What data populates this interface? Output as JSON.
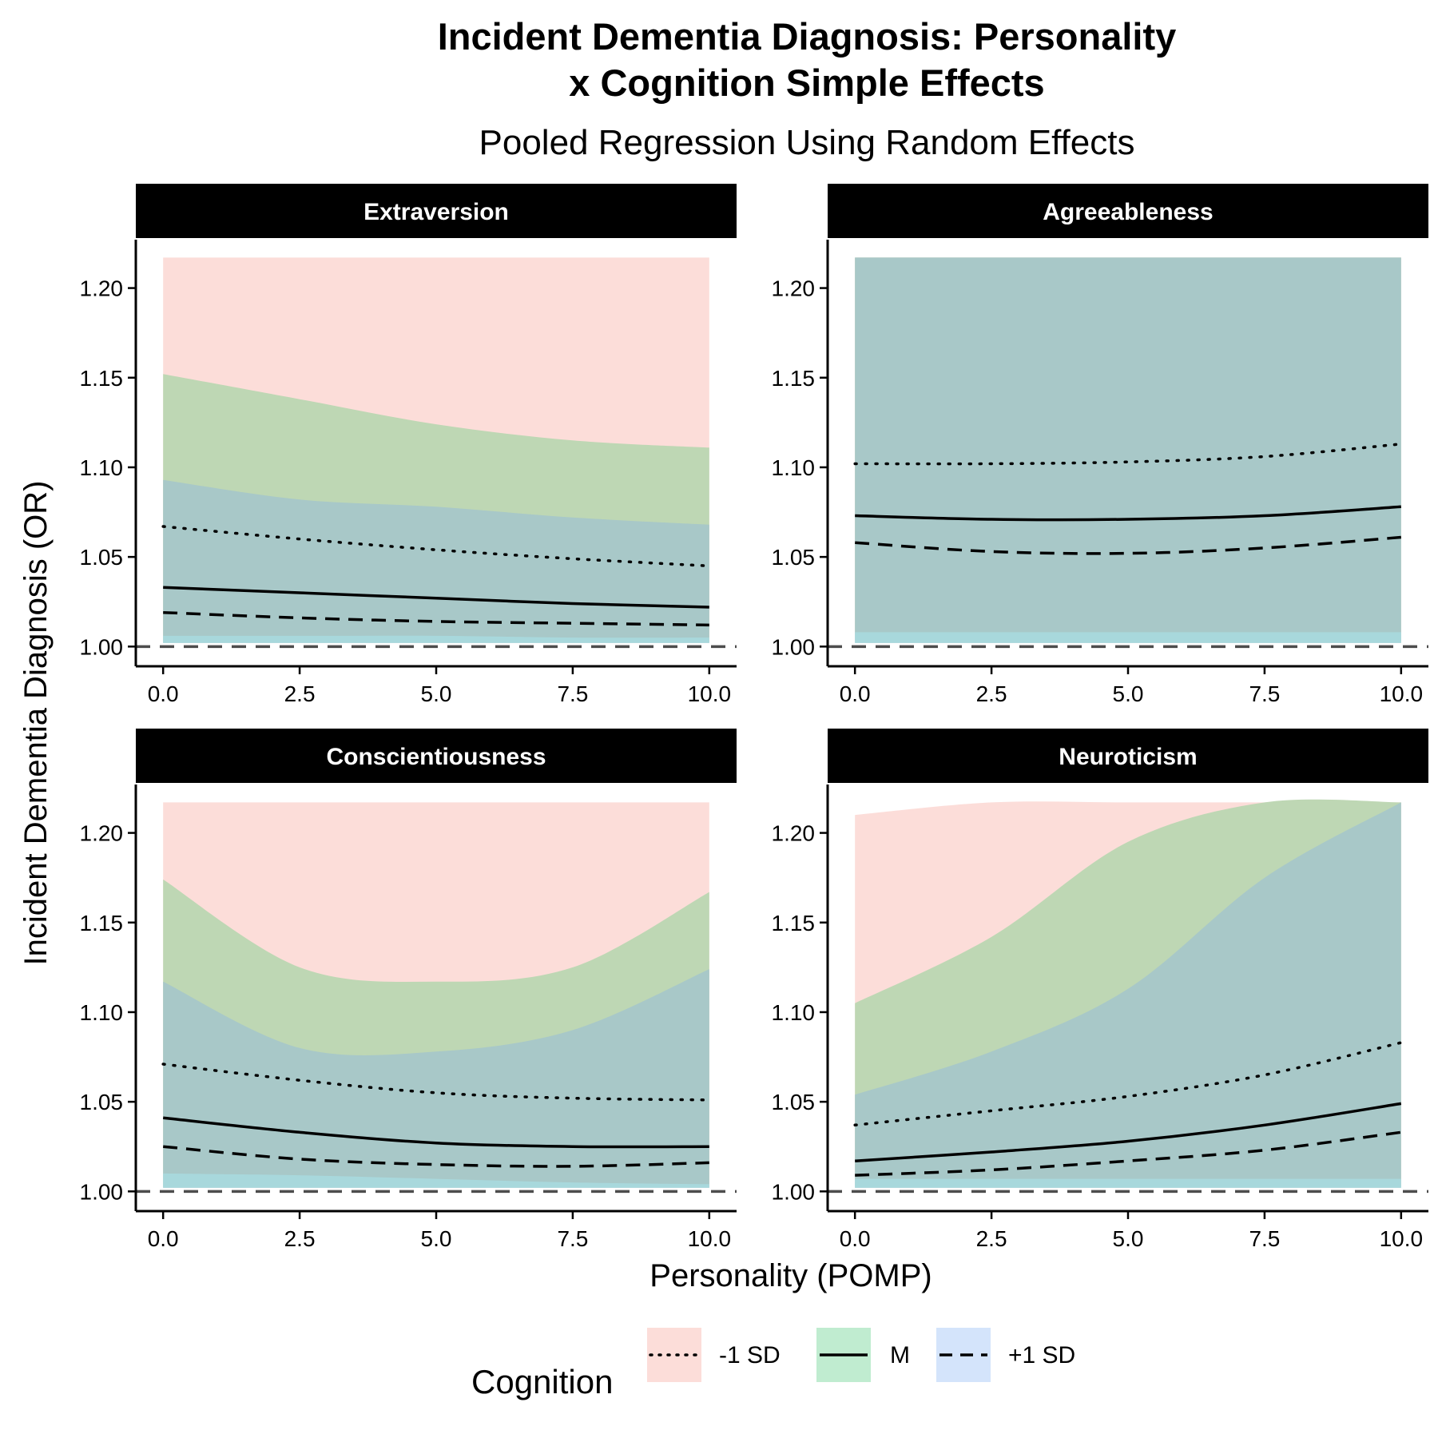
{
  "title_line1": "Incident Dementia Diagnosis: Personality",
  "title_line2": "x Cognition Simple Effects",
  "subtitle": "Pooled Regression Using Random Effects",
  "colors": {
    "band_minus": "#fcddd9",
    "band_mean": "#bed7b4",
    "band_plus": "#a8c8c8",
    "band_base_mean": "#a8d8dc",
    "band_base_plus": "#cfe2f8",
    "legend_minus": "#fcddd9",
    "legend_mean": "#c0ecd0",
    "legend_plus": "#d4e4fb",
    "strip": "#000000",
    "refline": "#4d4d4d"
  },
  "chart_data": {
    "type": "line",
    "xlabel": "Personality (POMP)",
    "ylabel": "Incident Dementia Diagnosis (OR)",
    "xlim": [
      -0.5,
      10.5
    ],
    "ylim": [
      0.989,
      1.227
    ],
    "x_ticks": [
      "0.0",
      "2.5",
      "5.0",
      "7.5",
      "10.0"
    ],
    "y_ticks": [
      "1.00",
      "1.05",
      "1.10",
      "1.15",
      "1.20"
    ],
    "reference_line": 1.0,
    "band_cap": 1.217,
    "x": [
      0,
      2.5,
      5,
      7.5,
      10
    ],
    "legend": {
      "title": "Cognition",
      "entries": [
        "-1 SD",
        "M",
        "+1 SD"
      ]
    },
    "panels": [
      {
        "name": "Extraversion",
        "lines": {
          "minus": [
            1.067,
            1.06,
            1.054,
            1.049,
            1.045
          ],
          "mean": [
            1.033,
            1.03,
            1.027,
            1.024,
            1.022
          ],
          "plus": [
            1.019,
            1.016,
            1.014,
            1.013,
            1.012
          ]
        },
        "bands": {
          "minus": {
            "lower": [
              1.003,
              1.003,
              1.003,
              1.003,
              1.003
            ],
            "upper": [
              1.217,
              1.217,
              1.217,
              1.217,
              1.217
            ]
          },
          "mean": {
            "lower": [
              1.006,
              1.006,
              1.006,
              1.005,
              1.005
            ],
            "upper": [
              1.152,
              1.138,
              1.124,
              1.115,
              1.111
            ]
          },
          "plus": {
            "lower": [
              1.002,
              1.002,
              1.002,
              1.002,
              1.002
            ],
            "upper": [
              1.093,
              1.082,
              1.078,
              1.072,
              1.068
            ]
          }
        }
      },
      {
        "name": "Agreeableness",
        "lines": {
          "minus": [
            1.102,
            1.102,
            1.103,
            1.106,
            1.113
          ],
          "mean": [
            1.073,
            1.071,
            1.071,
            1.073,
            1.078
          ],
          "plus": [
            1.058,
            1.053,
            1.052,
            1.055,
            1.061
          ]
        },
        "bands": {
          "minus": {
            "lower": [
              1.003,
              1.003,
              1.003,
              1.003,
              1.003
            ],
            "upper": [
              1.217,
              1.217,
              1.217,
              1.217,
              1.217
            ]
          },
          "mean": {
            "lower": [
              1.008,
              1.008,
              1.008,
              1.008,
              1.008
            ],
            "upper": [
              1.217,
              1.217,
              1.217,
              1.217,
              1.217
            ]
          },
          "plus": {
            "lower": [
              1.002,
              1.002,
              1.002,
              1.002,
              1.002
            ],
            "upper": [
              1.217,
              1.217,
              1.217,
              1.217,
              1.217
            ]
          }
        }
      },
      {
        "name": "Conscientiousness",
        "lines": {
          "minus": [
            1.071,
            1.062,
            1.055,
            1.052,
            1.051
          ],
          "mean": [
            1.041,
            1.033,
            1.027,
            1.025,
            1.025
          ],
          "plus": [
            1.025,
            1.018,
            1.015,
            1.014,
            1.016
          ]
        },
        "bands": {
          "minus": {
            "lower": [
              1.003,
              1.003,
              1.003,
              1.003,
              1.003
            ],
            "upper": [
              1.217,
              1.217,
              1.217,
              1.217,
              1.217
            ]
          },
          "mean": {
            "lower": [
              1.01,
              1.009,
              1.007,
              1.005,
              1.004
            ],
            "upper": [
              1.174,
              1.125,
              1.117,
              1.125,
              1.167
            ]
          },
          "plus": {
            "lower": [
              1.002,
              1.002,
              1.002,
              1.002,
              1.002
            ],
            "upper": [
              1.117,
              1.08,
              1.078,
              1.09,
              1.124
            ]
          }
        }
      },
      {
        "name": "Neuroticism",
        "lines": {
          "minus": [
            1.037,
            1.045,
            1.053,
            1.065,
            1.083
          ],
          "mean": [
            1.017,
            1.022,
            1.028,
            1.037,
            1.049
          ],
          "plus": [
            1.009,
            1.012,
            1.017,
            1.023,
            1.033
          ]
        },
        "bands": {
          "minus": {
            "lower": [
              1.003,
              1.003,
              1.003,
              1.003,
              1.003
            ],
            "upper": [
              1.21,
              1.217,
              1.217,
              1.217,
              1.217
            ]
          },
          "mean": {
            "lower": [
              1.007,
              1.007,
              1.007,
              1.007,
              1.007
            ],
            "upper": [
              1.105,
              1.142,
              1.195,
              1.217,
              1.217
            ]
          },
          "plus": {
            "lower": [
              1.002,
              1.002,
              1.002,
              1.002,
              1.002
            ],
            "upper": [
              1.054,
              1.078,
              1.113,
              1.175,
              1.217
            ]
          }
        }
      }
    ]
  }
}
